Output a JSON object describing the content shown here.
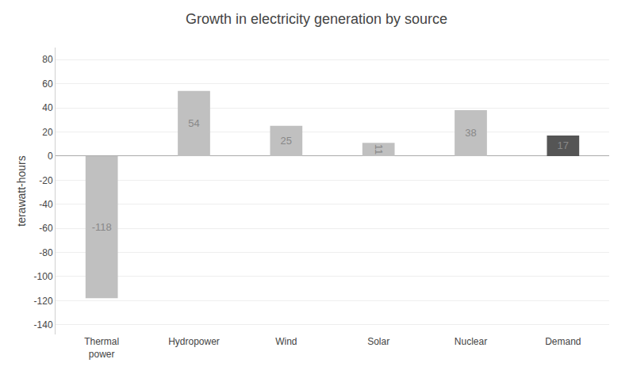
{
  "chart_data": {
    "type": "bar",
    "title": "Growth in electricity generation by source",
    "categories": [
      "Thermal\npower",
      "Hydropower",
      "Wind",
      "Solar",
      "Nuclear",
      "Demand"
    ],
    "values": [
      -118,
      54,
      25,
      11,
      38,
      17
    ],
    "colors": [
      "#c0c0c0",
      "#c0c0c0",
      "#c0c0c0",
      "#c0c0c0",
      "#c0c0c0",
      "#555555"
    ],
    "ylabel": "terawatt-hours",
    "ylim": [
      -148,
      90
    ],
    "yticks": [
      -140,
      -120,
      -100,
      -80,
      -60,
      -40,
      -20,
      0,
      20,
      40,
      60,
      80
    ],
    "grid": true,
    "data_labels": true
  }
}
